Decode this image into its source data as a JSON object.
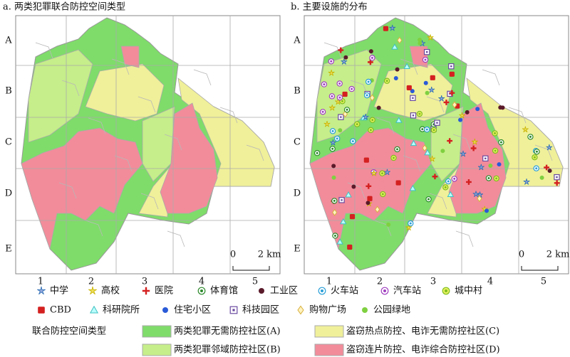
{
  "panels": [
    {
      "title": "a. 两类犯罪联合防控空间类型",
      "rows": [
        "A",
        "B",
        "C",
        "D",
        "E"
      ],
      "cols": [
        "1",
        "2",
        "3",
        "4",
        "5"
      ],
      "scale": {
        "zero": "0",
        "label": "2 km"
      }
    },
    {
      "title": "b. 主要设施的分布",
      "rows": [
        "A",
        "B",
        "C",
        "D",
        "E"
      ],
      "cols": [
        "1",
        "2",
        "3",
        "4",
        "5"
      ],
      "scale": {
        "zero": "0",
        "label": "2 km"
      }
    }
  ],
  "legend": {
    "facilities": [
      {
        "name": "中学",
        "color": "#2e6fb5"
      },
      {
        "name": "高校",
        "color": "#c9b400"
      },
      {
        "name": "医院",
        "color": "#d42020"
      },
      {
        "name": "体育馆",
        "color": "#2d8a2d"
      },
      {
        "name": "工业区",
        "color": "#5a1a2a"
      },
      {
        "name": "火车站",
        "color": "#2a9fd8"
      },
      {
        "name": "汽车站",
        "color": "#a040c0"
      },
      {
        "name": "城中村",
        "color": "#7fbf20"
      },
      {
        "name": "CBD",
        "color": "#d42020"
      },
      {
        "name": "科研院所",
        "color": "#40c0c0"
      },
      {
        "name": "住宅小区",
        "color": "#2a5ad8"
      },
      {
        "name": "科技园区",
        "color": "#6a4aa0"
      },
      {
        "name": "购物广场",
        "color": "#d8b040"
      },
      {
        "name": "公园绿地",
        "color": "#7fd040"
      }
    ],
    "zone_title": "联合防控空间类型",
    "zones": [
      {
        "name": "两类犯罪无需防控社区(A)",
        "color": "#7fdc6a"
      },
      {
        "name": "盗窃热点防控、电诈无需防控社区(C)",
        "color": "#f0f09a"
      },
      {
        "name": "两类犯罪邻域防控社区(B)",
        "color": "#c6ee8a"
      },
      {
        "name": "盗窃连片防控、电诈综合防控社区(D)",
        "color": "#f28c9a"
      }
    ]
  }
}
